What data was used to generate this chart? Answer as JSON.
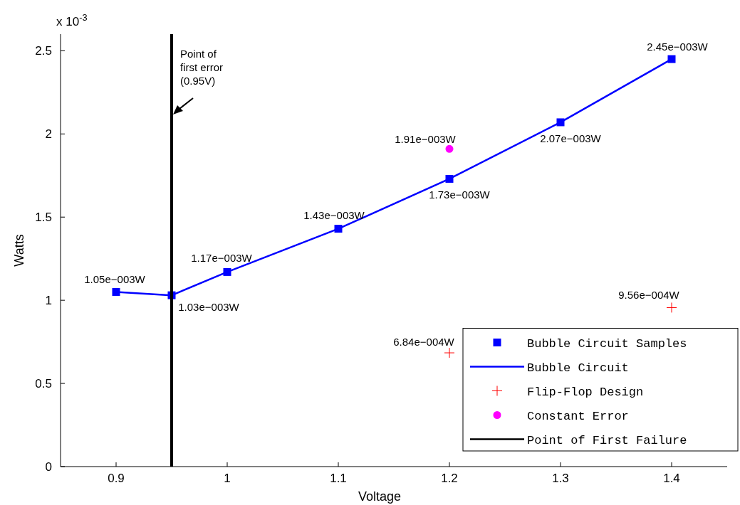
{
  "chart_data": {
    "type": "scatter",
    "xlabel": "Voltage",
    "ylabel": "Watts",
    "xlim": [
      0.85,
      1.45
    ],
    "ylim": [
      0,
      2.6
    ],
    "xticks": [
      0.9,
      1,
      1.1,
      1.2,
      1.3,
      1.4
    ],
    "yticks": [
      0,
      0.5,
      1,
      1.5,
      2,
      2.5
    ],
    "grid": false,
    "legend": "bottom right",
    "series": [
      {
        "name": "Bubble Circuit Samples",
        "marker": "square",
        "color": "#0000ff",
        "x": [
          0.9,
          0.95,
          1,
          1.1,
          1.2,
          1.3,
          1.4
        ],
        "values": [
          1.05,
          1.03,
          1.17,
          1.43,
          1.73,
          2.07,
          2.45
        ],
        "value_labels": [
          "1.05e−003W",
          "1.03e−003W",
          "1.17e−003W",
          "1.43e−003W",
          "1.73e−003W",
          "2.07e−003W",
          "2.45e−003W"
        ]
      },
      {
        "name": "Bubble Circuit",
        "type": "line",
        "marker": "none",
        "line_style": "solid",
        "color": "#0000ff",
        "x": [
          0.9,
          0.95,
          1,
          1.1,
          1.2,
          1.3,
          1.4
        ],
        "values": [
          1.05,
          1.03,
          1.17,
          1.43,
          1.73,
          2.07,
          2.45
        ]
      },
      {
        "name": "Flip-Flop Design",
        "marker": "cross",
        "color": "#ff0000",
        "x": [
          1.2,
          1.4
        ],
        "values": [
          0.684,
          0.956
        ],
        "value_labels": [
          "6.84e−004W",
          "9.56e−004W"
        ]
      },
      {
        "name": "Constant Error",
        "marker": "circle",
        "color": "#ff00ff",
        "x": [
          1.2
        ],
        "values": [
          1.91
        ],
        "value_labels": [
          "1.91e−003W"
        ]
      },
      {
        "name": "Point of First Failure",
        "type": "line",
        "marker": "none",
        "line_style": "solid",
        "color": "#000000",
        "x": [
          0.95,
          0.95
        ],
        "values": [
          0,
          2.6
        ]
      }
    ],
    "annotations": [
      "x 10$^{-3}$",
      {
        "text": "Point of\nfirst error\n(0.95V)",
        "x": 0.95,
        "y": 2.1
      }
    ]
  }
}
